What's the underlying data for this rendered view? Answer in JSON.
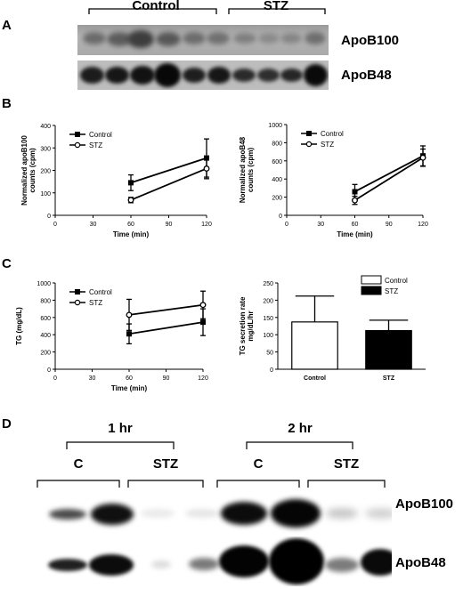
{
  "panels": {
    "a": "A",
    "b": "B",
    "c": "C",
    "d": "D"
  },
  "blot_top": {
    "groups": [
      "Control",
      "STZ"
    ],
    "bands": [
      "ApoB100",
      "ApoB48"
    ]
  },
  "blot_bottom": {
    "times": [
      "1 hr",
      "2 hr"
    ],
    "groups": [
      "C",
      "STZ",
      "C",
      "STZ"
    ],
    "bands": [
      "ApoB100",
      "ApoB48"
    ]
  },
  "colors": {
    "control": "#000000",
    "stz_fill": "#ffffff",
    "bar_stz": "#000000"
  },
  "chart_data": [
    {
      "type": "line",
      "xlabel": "Time (min)",
      "ylabel": [
        "Normalized apoB100",
        "counts (cpm)"
      ],
      "xlim": [
        0,
        120
      ],
      "xticks": [
        0,
        30,
        60,
        90,
        120
      ],
      "ylim": [
        0,
        400
      ],
      "yticks": [
        0,
        100,
        200,
        300,
        400
      ],
      "legend": "top-left",
      "series": [
        {
          "name": "Control",
          "marker": "square",
          "x": [
            60,
            120
          ],
          "y": [
            145,
            255
          ],
          "err": [
            35,
            85
          ]
        },
        {
          "name": "STZ",
          "marker": "circle",
          "x": [
            60,
            120
          ],
          "y": [
            68,
            208
          ],
          "err": [
            12,
            45
          ]
        }
      ]
    },
    {
      "type": "line",
      "xlabel": "Time (min)",
      "ylabel": [
        "Normalized apoB48",
        "counts (cpm)"
      ],
      "xlim": [
        0,
        120
      ],
      "xticks": [
        0,
        30,
        60,
        90,
        120
      ],
      "ylim": [
        0,
        1000
      ],
      "yticks": [
        0,
        200,
        400,
        600,
        800,
        1000
      ],
      "legend": "top-left",
      "series": [
        {
          "name": "Control",
          "marker": "square",
          "x": [
            60,
            120
          ],
          "y": [
            260,
            655
          ],
          "err": [
            80,
            110
          ]
        },
        {
          "name": "STZ",
          "marker": "circle",
          "x": [
            60,
            120
          ],
          "y": [
            165,
            635
          ],
          "err": [
            45,
            95
          ]
        }
      ]
    },
    {
      "type": "line",
      "xlabel": "Time (min)",
      "ylabel": [
        "TG (mg/dL)"
      ],
      "xlim": [
        0,
        120
      ],
      "xticks": [
        0,
        30,
        60,
        90,
        120
      ],
      "ylim": [
        0,
        1000
      ],
      "yticks": [
        0,
        200,
        400,
        600,
        800,
        1000
      ],
      "legend": "top-left",
      "series": [
        {
          "name": "Control",
          "marker": "square",
          "x": [
            60,
            120
          ],
          "y": [
            410,
            545
          ],
          "err": [
            115,
            155
          ]
        },
        {
          "name": "STZ",
          "marker": "circle",
          "x": [
            60,
            120
          ],
          "y": [
            630,
            745
          ],
          "err": [
            180,
            160
          ]
        }
      ]
    },
    {
      "type": "bar",
      "ylabel": [
        "TG secretion rate",
        "mg/dL/hr"
      ],
      "categories": [
        "Control",
        "STZ"
      ],
      "values": [
        137,
        112
      ],
      "err": [
        75,
        30
      ],
      "ylim": [
        0,
        250
      ],
      "yticks": [
        0,
        50,
        100,
        150,
        200,
        250
      ],
      "legend": "top-right",
      "series_names": [
        "Control",
        "STZ"
      ]
    }
  ]
}
